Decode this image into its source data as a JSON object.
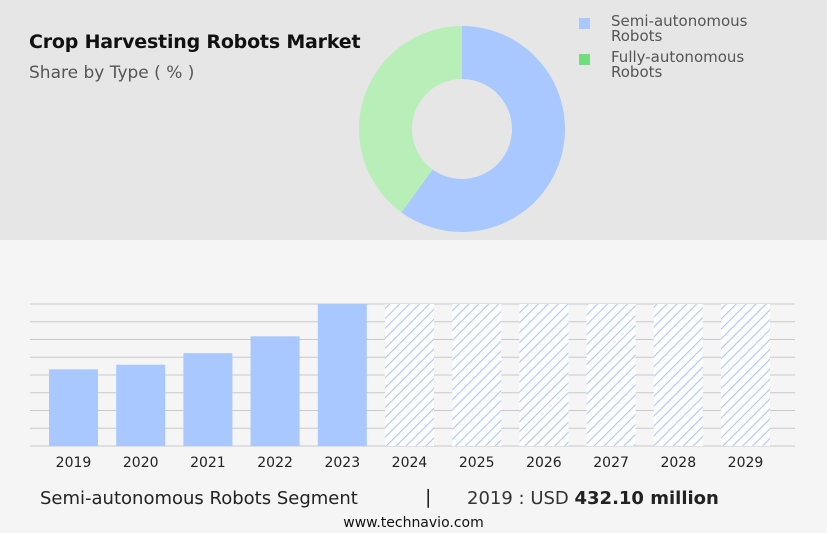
{
  "header": {
    "title": "Crop Harvesting Robots Market",
    "subtitle": "Share by Type ( % )"
  },
  "chart_data": [
    {
      "type": "pie",
      "donut": true,
      "title": "Crop Harvesting Robots Market",
      "subtitle": "Share by Type ( % )",
      "legend_position": "top-right",
      "series": [
        {
          "name": "Semi-autonomous Robots",
          "value": 60,
          "color": "#a9c8ff"
        },
        {
          "name": "Fully-autonomous Robots",
          "value": 40,
          "color": "#b8efb8"
        }
      ]
    },
    {
      "type": "bar",
      "categories": [
        "2019",
        "2020",
        "2021",
        "2022",
        "2023",
        "2024",
        "2025",
        "2026",
        "2027",
        "2028",
        "2029"
      ],
      "values": [
        432.1,
        458,
        523,
        618,
        800,
        800,
        800,
        800,
        800,
        800,
        800
      ],
      "forecast_from": "2024",
      "color": "#a9c8ff",
      "ylim": [
        0,
        800
      ],
      "grid": true,
      "xlabel": "",
      "ylabel": ""
    }
  ],
  "legend": {
    "items": [
      {
        "label": "Semi-autonomous Robots",
        "color": "#a9c8ff"
      },
      {
        "label": "Fully-autonomous Robots",
        "color": "#6ee07a"
      }
    ]
  },
  "footer": {
    "segment": "Semi-autonomous Robots Segment",
    "separator": "|",
    "value_prefix": "2019 : USD ",
    "value_bold": "432.10 million",
    "source": "www.technavio.com"
  }
}
